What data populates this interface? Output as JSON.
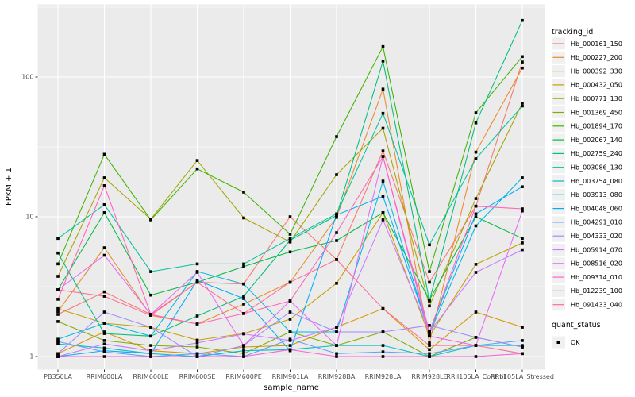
{
  "chart_data": {
    "type": "line",
    "title": "",
    "xlabel": "sample_name",
    "ylabel": "FPKM + 1",
    "y_scale": "log10",
    "y_ticks": [
      1,
      10,
      100
    ],
    "ylim_log": [
      -0.09,
      2.61
    ],
    "grid": "on",
    "panel_bg": "#ebebeb",
    "grid_color": "#ffffff",
    "marker": "black-square",
    "legend_position": "right",
    "legends": {
      "color_legend_title": "tracking_id",
      "shape_legend_title": "quant_status",
      "shape_legend_items": [
        {
          "label": "OK",
          "marker": "black-square"
        }
      ]
    },
    "categories": [
      "PB350LA",
      "RRIM600LA",
      "RRIM600LE",
      "RRIM600SE",
      "RRIM600PE",
      "RRIM901LA",
      "RRIM928BA",
      "RRIM928LA",
      "RRIM928LE",
      "RRII105LA_Control",
      "RRII105LA_Stressed"
    ],
    "series": [
      {
        "name": "Hb_000161_150",
        "color": "#F8766D",
        "values": [
          2.0,
          2.9,
          2.0,
          3.4,
          3.3,
          10.0,
          4.94,
          29.6,
          3.4,
          11.9,
          128
        ]
      },
      {
        "name": "Hb_000227_200",
        "color": "#E98A2C",
        "values": [
          2.1,
          6.0,
          1.97,
          1.71,
          2.37,
          3.4,
          9.9,
          82,
          1.25,
          29,
          116
        ]
      },
      {
        "name": "Hb_000392_330",
        "color": "#D99500",
        "values": [
          1.05,
          1.5,
          1.1,
          1.05,
          1.17,
          1.2,
          1.62,
          2.2,
          1.12,
          2.08,
          1.62
        ]
      },
      {
        "name": "Hb_000432_050",
        "color": "#C39F00",
        "values": [
          2.2,
          1.73,
          1.62,
          1.31,
          1.46,
          1.85,
          3.34,
          10.7,
          1.4,
          4.57,
          6.5
        ]
      },
      {
        "name": "Hb_000771_130",
        "color": "#A4A500",
        "values": [
          3.75,
          19,
          9.6,
          25.3,
          9.8,
          6.6,
          20,
          43,
          2.3,
          13.5,
          65
        ]
      },
      {
        "name": "Hb_001369_450",
        "color": "#7FAD00",
        "values": [
          1.78,
          1.3,
          1.2,
          1.17,
          1.05,
          1.5,
          1.2,
          1.5,
          1.0,
          1.37,
          1.17
        ]
      },
      {
        "name": "Hb_001894_170",
        "color": "#3DB400",
        "values": [
          4.6,
          28,
          9.5,
          22,
          15,
          7.5,
          37.5,
          165,
          4.05,
          55.5,
          140
        ]
      },
      {
        "name": "Hb_002067_140",
        "color": "#00BA42",
        "values": [
          3.0,
          10.7,
          2.75,
          3.4,
          4.4,
          5.6,
          6.75,
          10.7,
          2.54,
          10.0,
          7.0
        ]
      },
      {
        "name": "Hb_002759_240",
        "color": "#00BE7C",
        "values": [
          5.5,
          1.46,
          1.4,
          1.95,
          2.7,
          6.8,
          10.2,
          130,
          2.5,
          47,
          254
        ]
      },
      {
        "name": "Hb_003086_130",
        "color": "#00C1A2",
        "values": [
          7.0,
          12.2,
          4.05,
          4.6,
          4.6,
          7.0,
          10.5,
          55,
          6.3,
          26,
          62
        ]
      },
      {
        "name": "Hb_003754_080",
        "color": "#00BFC4",
        "values": [
          1.23,
          1.15,
          1.05,
          1.0,
          1.1,
          1.12,
          1.2,
          1.2,
          1.0,
          1.2,
          1.2
        ]
      },
      {
        "name": "Hb_003913_080",
        "color": "#00B9E3",
        "values": [
          1.33,
          1.73,
          1.4,
          4.06,
          3.3,
          1.5,
          1.5,
          18,
          1.45,
          8.6,
          19
        ]
      },
      {
        "name": "Hb_004048_060",
        "color": "#00ADFA",
        "values": [
          1.0,
          1.1,
          1.05,
          3.5,
          2.6,
          1.1,
          10.3,
          14,
          1.5,
          10.5,
          16.4
        ]
      },
      {
        "name": "Hb_004291_010",
        "color": "#619CFF",
        "values": [
          1.28,
          1.08,
          1.0,
          1.05,
          1.0,
          1.33,
          1.05,
          1.08,
          1.05,
          1.2,
          1.3
        ]
      },
      {
        "name": "Hb_004333_020",
        "color": "#A08BFF",
        "values": [
          1.05,
          2.08,
          1.62,
          1.0,
          1.2,
          2.08,
          1.5,
          1.5,
          1.67,
          1.37,
          1.17
        ]
      },
      {
        "name": "Hb_005914_070",
        "color": "#CB79FF",
        "values": [
          1.0,
          1.23,
          1.1,
          1.25,
          1.45,
          1.3,
          1.62,
          9.5,
          1.5,
          4.0,
          5.8
        ]
      },
      {
        "name": "Hb_008516_020",
        "color": "#E76BF3",
        "values": [
          3.0,
          5.3,
          2.0,
          4.0,
          1.2,
          2.5,
          1.2,
          27,
          1.4,
          1.2,
          11.0
        ]
      },
      {
        "name": "Hb_009314_010",
        "color": "#FB61D7",
        "values": [
          1.0,
          1.0,
          1.0,
          1.0,
          1.0,
          1.12,
          1.0,
          1.0,
          1.0,
          1.0,
          1.05
        ]
      },
      {
        "name": "Hb_012239_100",
        "color": "#FF62BB",
        "values": [
          2.57,
          16.7,
          2.0,
          1.71,
          2.03,
          2.5,
          7.7,
          27,
          1.5,
          11.9,
          11.4
        ]
      },
      {
        "name": "Hb_091433_040",
        "color": "#FF6C91",
        "values": [
          3.0,
          2.7,
          1.97,
          3.4,
          2.03,
          3.4,
          4.94,
          2.2,
          1.2,
          1.2,
          1.05
        ]
      }
    ]
  },
  "layout_text": {
    "ylabel": "FPKM + 1",
    "xlabel": "sample_name",
    "color_legend_title": "tracking_id",
    "shape_legend_title": "quant_status",
    "shape_legend_ok": "OK"
  }
}
